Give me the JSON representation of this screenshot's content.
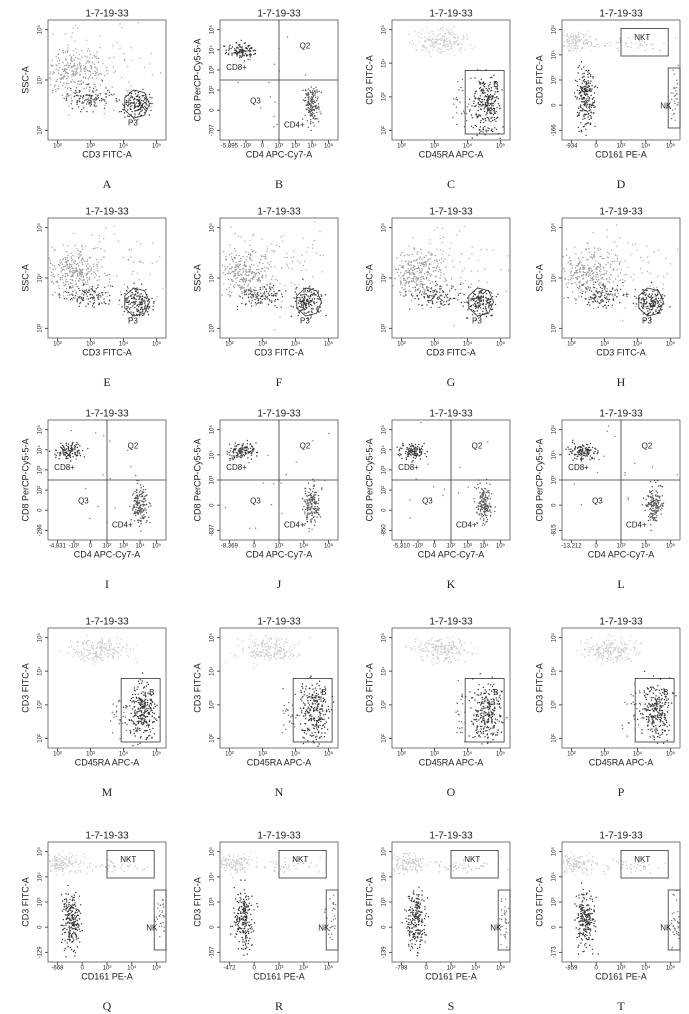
{
  "panels": [
    {
      "label": "A",
      "type": "ssc",
      "title": "1-7-19-33",
      "x_label": "CD3 FITC-A",
      "y_label": "SSC-A",
      "gates": [
        "P3"
      ],
      "x_ticks": [
        "10²",
        "10³",
        "10⁴",
        "10⁵"
      ],
      "y_ticks": [
        "10³",
        "10⁴",
        "10⁵"
      ]
    },
    {
      "label": "B",
      "type": "cd4cd8",
      "title": "1-7-19-33",
      "x_label": "CD4 APC-Cy7-A",
      "y_label": "CD8 PerCP-Cy5-5-A",
      "gates": [
        "CD8+",
        "Q2",
        "Q3",
        "CD4+"
      ],
      "x_ticks": [
        "-5,895",
        "-10²",
        "0",
        "10²",
        "10³",
        "10⁴",
        "10⁵"
      ],
      "y_ticks": [
        "-707",
        "0",
        "10²",
        "10³",
        "10⁴",
        "10⁵"
      ]
    },
    {
      "label": "C",
      "type": "cd45ra",
      "title": "1-7-19-33",
      "x_label": "CD45RA APC-A",
      "y_label": "CD3 FITC-A",
      "gates": [
        "B"
      ],
      "x_ticks": [
        "10²",
        "10³",
        "10⁴",
        "10⁵"
      ],
      "y_ticks": [
        "10²",
        "10³",
        "10⁴",
        "10⁵"
      ]
    },
    {
      "label": "D",
      "type": "cd161",
      "title": "1-7-19-33",
      "x_label": "CD161 PE-A",
      "y_label": "CD3 FITC-A",
      "gates": [
        "NKT",
        "NK"
      ],
      "x_ticks": [
        "-934",
        "0",
        "10³",
        "10⁴",
        "10⁵"
      ],
      "y_ticks": [
        "-166",
        "0",
        "10³",
        "10⁴",
        "10⁵"
      ]
    },
    {
      "label": "E",
      "type": "ssc",
      "title": "1-7-19-33",
      "x_label": "CD3 FITC-A",
      "y_label": "SSC-A",
      "gates": [
        "P3"
      ],
      "x_ticks": [
        "10²",
        "10³",
        "10⁴",
        "10⁵"
      ],
      "y_ticks": [
        "10³",
        "10⁴",
        "10⁵"
      ]
    },
    {
      "label": "F",
      "type": "ssc",
      "title": "1-7-19-33",
      "x_label": "CD3 FITC-A",
      "y_label": "SSC-A",
      "gates": [
        "P3"
      ],
      "x_ticks": [
        "10²",
        "10³",
        "10⁴",
        "10⁵"
      ],
      "y_ticks": [
        "10³",
        "10⁴",
        "10⁵"
      ]
    },
    {
      "label": "G",
      "type": "ssc",
      "title": "1-7-19-33",
      "x_label": "CD3 FITC-A",
      "y_label": "SSC-A",
      "gates": [
        "P3"
      ],
      "x_ticks": [
        "10²",
        "10³",
        "10⁴",
        "10⁵"
      ],
      "y_ticks": [
        "10³",
        "10⁴",
        "10⁵"
      ]
    },
    {
      "label": "H",
      "type": "ssc",
      "title": "1-7-19-33",
      "x_label": "CD3 FITC-A",
      "y_label": "SSC-A",
      "gates": [
        "P3"
      ],
      "x_ticks": [
        "10²",
        "10³",
        "10⁴",
        "10⁵"
      ],
      "y_ticks": [
        "10³",
        "10⁴",
        "10⁵"
      ]
    },
    {
      "label": "I",
      "type": "cd4cd8",
      "title": "1-7-19-33",
      "x_label": "CD4 APC-Cy7-A",
      "y_label": "CD8 PerCP-Cy5-5-A",
      "gates": [
        "CD8+",
        "Q2",
        "Q3",
        "CD4+"
      ],
      "x_ticks": [
        "-4,831",
        "-10²",
        "0",
        "10²",
        "10³",
        "10⁴",
        "10⁵"
      ],
      "y_ticks": [
        "-286",
        "0",
        "10²",
        "10³",
        "10⁴",
        "10⁵"
      ]
    },
    {
      "label": "J",
      "type": "cd4cd8",
      "title": "1-7-19-33",
      "x_label": "CD4 APC-Cy7-A",
      "y_label": "CD8 PerCP-Cy5-5-A",
      "gates": [
        "CD8+",
        "Q2",
        "Q3",
        "CD4+"
      ],
      "x_ticks": [
        "-8,369",
        "0",
        "10³",
        "10⁴",
        "10⁵"
      ],
      "y_ticks": [
        "-837",
        "0",
        "10³",
        "10⁴",
        "10⁵"
      ]
    },
    {
      "label": "K",
      "type": "cd4cd8",
      "title": "1-7-19-33",
      "x_label": "CD4 APC-Cy7-A",
      "y_label": "CD8 PerCP-Cy5-5-A",
      "gates": [
        "CD8+",
        "Q2",
        "Q3",
        "CD4+"
      ],
      "x_ticks": [
        "-5,310",
        "-10²",
        "0",
        "10²",
        "10³",
        "10⁴",
        "10⁵"
      ],
      "y_ticks": [
        "-850",
        "0",
        "10²",
        "10³",
        "10⁴",
        "10⁵"
      ]
    },
    {
      "label": "L",
      "type": "cd4cd8",
      "title": "1-7-19-33",
      "x_label": "CD4 APC-Cy7-A",
      "y_label": "CD8 PerCP-Cy5-5-A",
      "gates": [
        "CD8+",
        "Q2",
        "Q3",
        "CD4+"
      ],
      "x_ticks": [
        "-13,212",
        "0",
        "10³",
        "10⁴",
        "10⁵"
      ],
      "y_ticks": [
        "-815",
        "0",
        "10³",
        "10⁴",
        "10⁵"
      ]
    },
    {
      "label": "M",
      "type": "cd45ra",
      "title": "1-7-19-33",
      "x_label": "CD45RA APC-A",
      "y_label": "CD3 FITC-A",
      "gates": [
        "B"
      ],
      "x_ticks": [
        "10²",
        "10³",
        "10⁴",
        "10⁵"
      ],
      "y_ticks": [
        "10²",
        "10³",
        "10⁴",
        "10⁵"
      ]
    },
    {
      "label": "N",
      "type": "cd45ra",
      "title": "1-7-19-33",
      "x_label": "CD45RA APC-A",
      "y_label": "CD3 FITC-A",
      "gates": [
        "B"
      ],
      "x_ticks": [
        "10²",
        "10³",
        "10⁴",
        "10⁵"
      ],
      "y_ticks": [
        "10²",
        "10³",
        "10⁴",
        "10⁵"
      ]
    },
    {
      "label": "O",
      "type": "cd45ra",
      "title": "1-7-19-33",
      "x_label": "CD45RA APC-A",
      "y_label": "CD3 FITC-A",
      "gates": [
        "B"
      ],
      "x_ticks": [
        "10²",
        "10³",
        "10⁴",
        "10⁵"
      ],
      "y_ticks": [
        "10²",
        "10³",
        "10⁴",
        "10⁵"
      ]
    },
    {
      "label": "P",
      "type": "cd45ra",
      "title": "1-7-19-33",
      "x_label": "CD45RA APC-A",
      "y_label": "CD3 FITC-A",
      "gates": [
        "B"
      ],
      "x_ticks": [
        "10²",
        "10³",
        "10⁴",
        "10⁵"
      ],
      "y_ticks": [
        "10²",
        "10³",
        "10⁴",
        "10⁵"
      ]
    },
    {
      "label": "Q",
      "type": "cd161",
      "title": "1-7-19-33",
      "x_label": "CD161 PE-A",
      "y_label": "CD3 FITC-A",
      "gates": [
        "NKT",
        "NK"
      ],
      "x_ticks": [
        "-668",
        "0",
        "10³",
        "10⁴",
        "10⁵"
      ],
      "y_ticks": [
        "-129",
        "0",
        "10³",
        "10⁴",
        "10⁵"
      ]
    },
    {
      "label": "R",
      "type": "cd161",
      "title": "1-7-19-33",
      "x_label": "CD161 PE-A",
      "y_label": "CD3 FITC-A",
      "gates": [
        "NKT",
        "NK"
      ],
      "x_ticks": [
        "-472",
        "0",
        "10³",
        "10⁴",
        "10⁵"
      ],
      "y_ticks": [
        "-157",
        "0",
        "10³",
        "10⁴",
        "10⁵"
      ]
    },
    {
      "label": "S",
      "type": "cd161",
      "title": "1-7-19-33",
      "x_label": "CD161 PE-A",
      "y_label": "CD3 FITC-A",
      "gates": [
        "NKT",
        "NK"
      ],
      "x_ticks": [
        "-798",
        "0",
        "10³",
        "10⁴",
        "10⁵"
      ],
      "y_ticks": [
        "-139",
        "0",
        "10³",
        "10⁴",
        "10⁵"
      ]
    },
    {
      "label": "T",
      "type": "cd161",
      "title": "1-7-19-33",
      "x_label": "CD161 PE-A",
      "y_label": "CD3 FITC-A",
      "gates": [
        "NKT",
        "NK"
      ],
      "x_ticks": [
        "-859",
        "0",
        "10³",
        "10⁴",
        "10⁵"
      ],
      "y_ticks": [
        "-173",
        "0",
        "10³",
        "10⁴",
        "10⁵"
      ]
    }
  ]
}
